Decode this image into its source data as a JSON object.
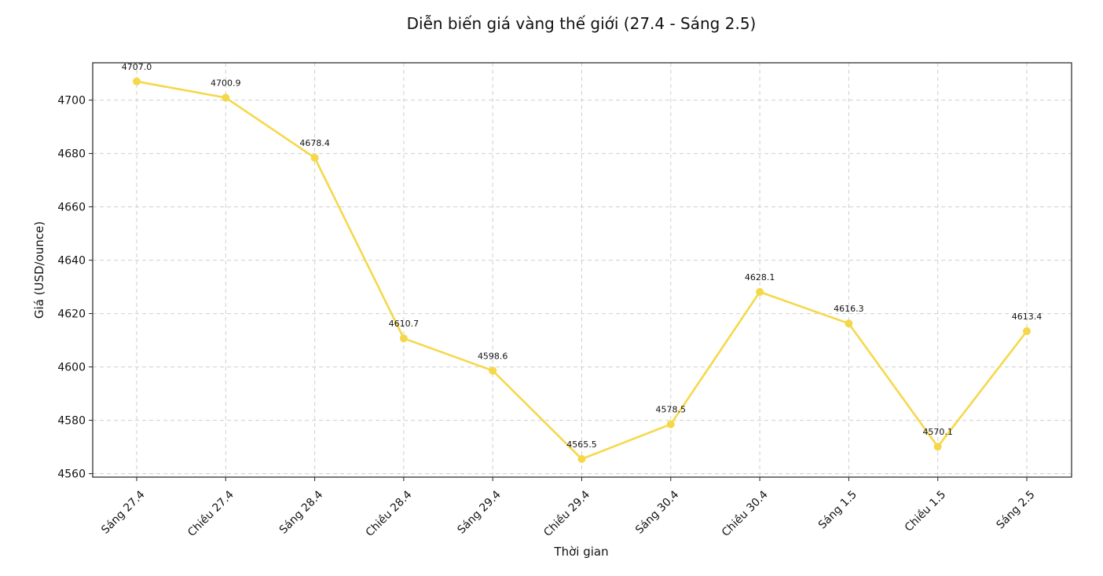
{
  "chart_data": {
    "type": "line",
    "title": "Diễn biến giá vàng thế giới (27.4 - Sáng 2.5)",
    "xlabel": "Thời gian",
    "ylabel": "Giá (USD/ounce)",
    "categories": [
      "Sáng 27.4",
      "Chiều 27.4",
      "Sáng 28.4",
      "Chiều 28.4",
      "Sáng 29.4",
      "Chiều 29.4",
      "Sáng 30.4",
      "Chiều 30.4",
      "Sáng 1.5",
      "Chiều 1.5",
      "Sáng 2.5"
    ],
    "values": [
      4707.0,
      4700.9,
      4678.4,
      4610.7,
      4598.6,
      4565.5,
      4578.5,
      4628.1,
      4616.3,
      4570.1,
      4613.4
    ],
    "data_labels": [
      "4707.0",
      "4700.9",
      "4678.4",
      "4610.7",
      "4598.6",
      "4565.5",
      "4578.5",
      "4628.1",
      "4616.3",
      "4570.1",
      "4613.4"
    ],
    "yticks": [
      4560,
      4580,
      4600,
      4620,
      4640,
      4660,
      4680,
      4700
    ],
    "ylim": [
      4558.7,
      4714.0
    ],
    "grid": true,
    "color": "#F5D84A"
  }
}
